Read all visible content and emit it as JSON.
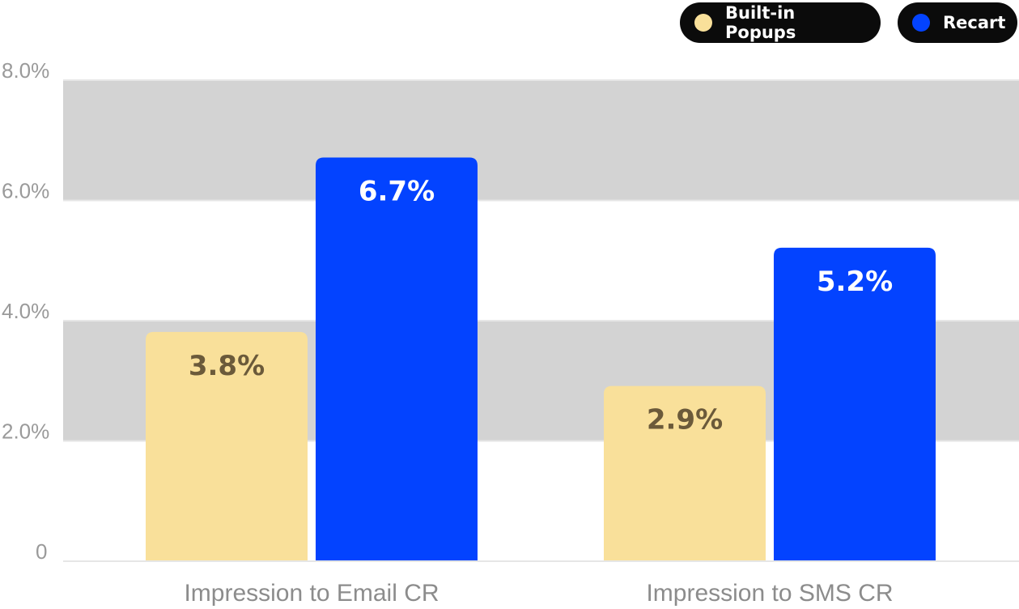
{
  "chart_data": {
    "type": "bar",
    "categories": [
      "Impression to Email CR",
      "Impression to SMS CR"
    ],
    "series": [
      {
        "name": "Built-in Popups",
        "values": [
          3.8,
          2.9
        ],
        "labels": [
          "3.8%",
          "2.9%"
        ],
        "color": "#f9e09a",
        "label_color": "#6b5a3a"
      },
      {
        "name": "Recart",
        "values": [
          6.7,
          5.2
        ],
        "labels": [
          "6.7%",
          "5.2%"
        ],
        "color": "#0343ff",
        "label_color": "#ffffff"
      }
    ],
    "ylim": [
      0,
      8
    ],
    "yticks": [
      0,
      2,
      4,
      6,
      8
    ],
    "ytick_labels": [
      "0",
      "2.0%",
      "4.0%",
      "6.0%",
      "8.0%"
    ],
    "band_color": "#d3d3d3",
    "grid": true,
    "legend_position": "top-right",
    "title": "",
    "xlabel": "",
    "ylabel": ""
  }
}
